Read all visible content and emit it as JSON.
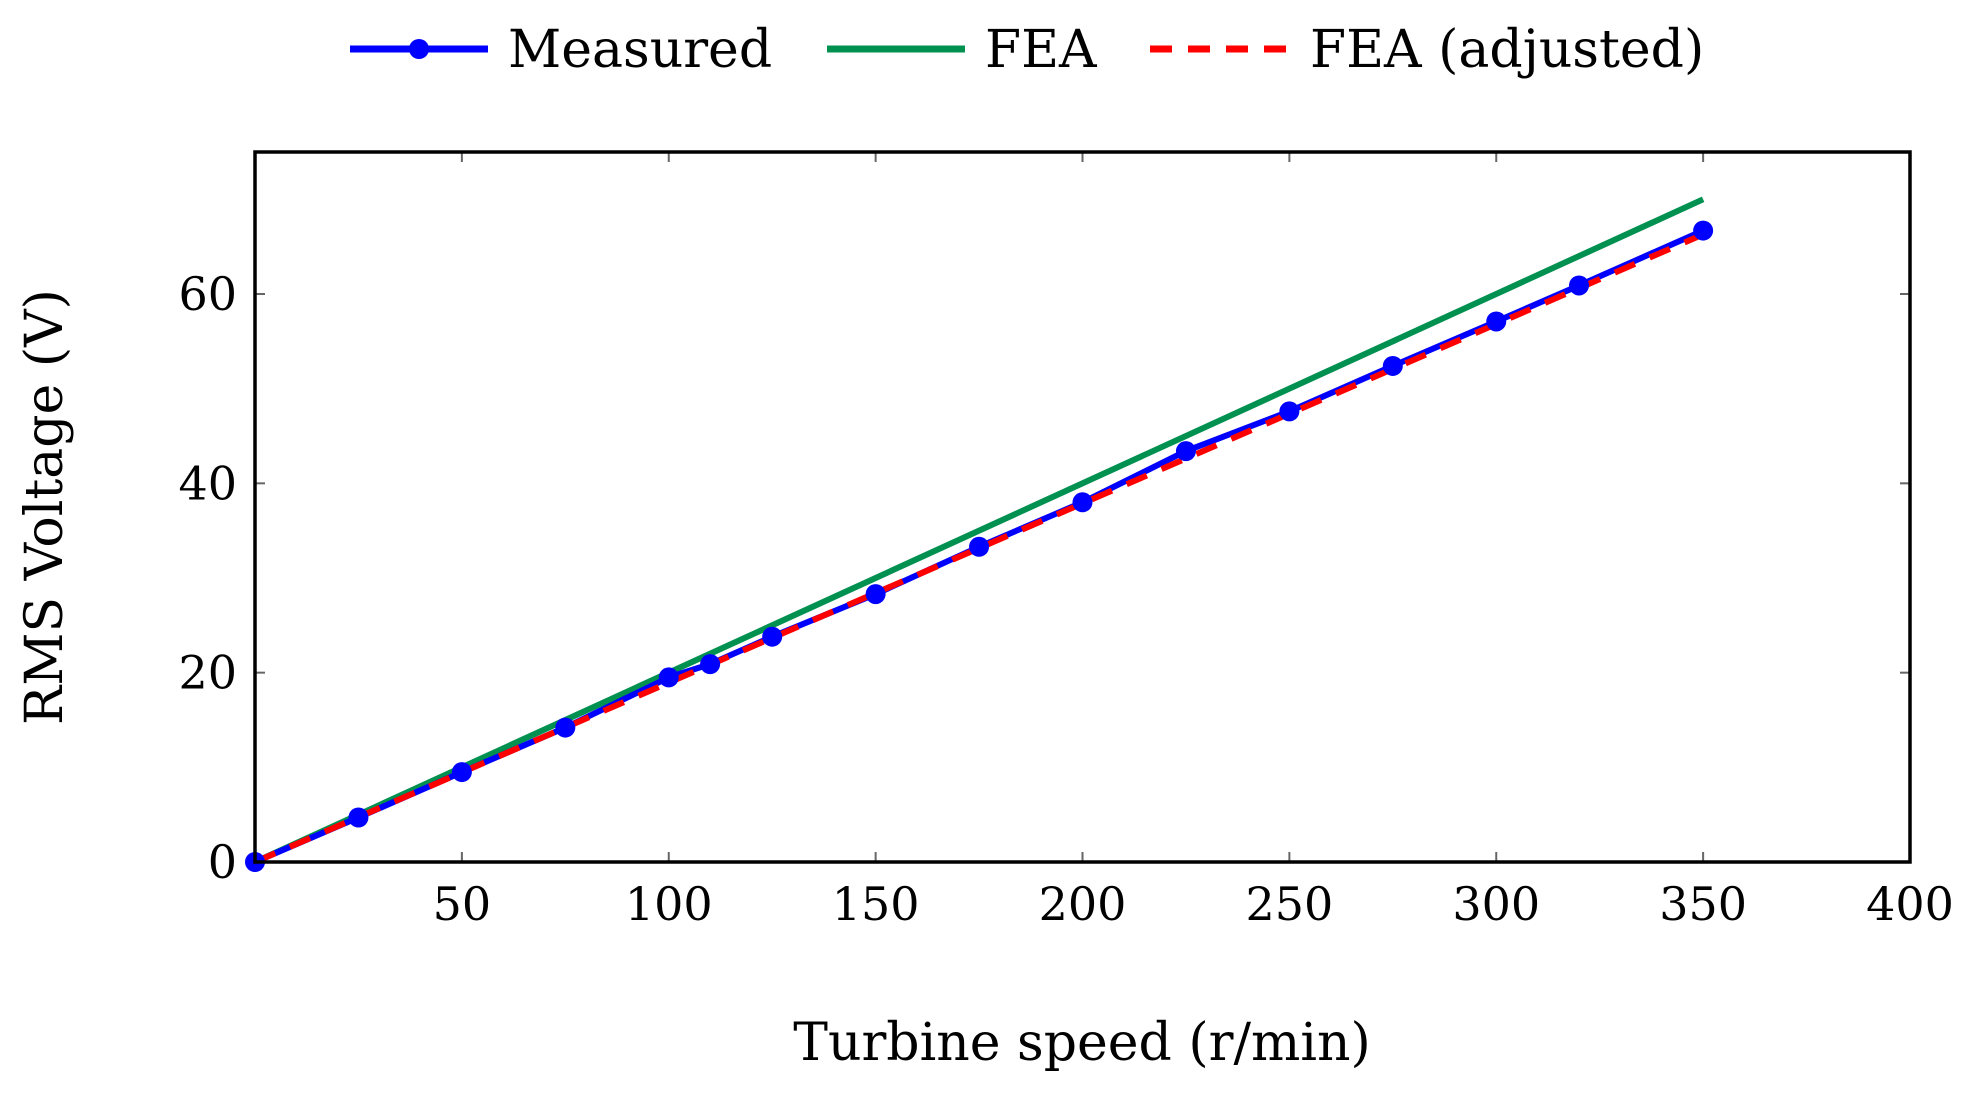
{
  "colors": {
    "measured": "#0000ff",
    "fea": "#009050",
    "fea_adjusted": "#ff0000",
    "axis": "#000000",
    "tick": "#666666"
  },
  "chart_data": {
    "type": "line",
    "title": "",
    "xlabel": "Turbine speed (r/min)",
    "ylabel": "RMS Voltage (V)",
    "xlim": [
      0,
      400
    ],
    "ylim": [
      0,
      75
    ],
    "xticks": [
      50,
      100,
      150,
      200,
      250,
      300,
      350,
      400
    ],
    "yticks": [
      0,
      20,
      40,
      60
    ],
    "grid": false,
    "legend_position": "top-center",
    "series": [
      {
        "name": "Measured",
        "style": "solid-with-markers",
        "x": [
          0,
          25,
          50,
          75,
          100,
          110,
          125,
          150,
          175,
          200,
          225,
          250,
          275,
          300,
          320,
          350
        ],
        "y": [
          0,
          4.7,
          9.5,
          14.2,
          19.5,
          20.9,
          23.8,
          28.3,
          33.3,
          38.0,
          43.4,
          47.6,
          52.4,
          57.1,
          60.9,
          66.7
        ]
      },
      {
        "name": "FEA",
        "style": "solid",
        "x": [
          0,
          350
        ],
        "y": [
          0,
          70.0
        ]
      },
      {
        "name": "FEA (adjusted)",
        "style": "dashed",
        "x": [
          0,
          350
        ],
        "y": [
          0,
          66.3
        ]
      }
    ]
  }
}
